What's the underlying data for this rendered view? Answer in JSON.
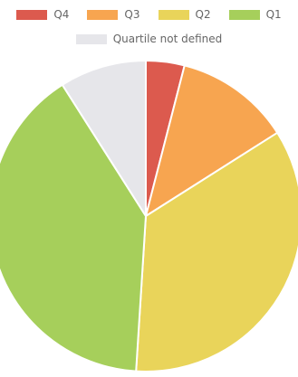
{
  "chart_data": {
    "type": "pie",
    "legend_position": "top",
    "slices": [
      {
        "label": "Q4",
        "value": 4,
        "color": "#dc5a4e"
      },
      {
        "label": "Q3",
        "value": 12,
        "color": "#f7a550"
      },
      {
        "label": "Q2",
        "value": 35,
        "color": "#e9d45a"
      },
      {
        "label": "Q1",
        "value": 40,
        "color": "#a6cf5b"
      },
      {
        "label": "Quartile not defined",
        "value": 9,
        "color": "#e6e6ea"
      }
    ]
  }
}
